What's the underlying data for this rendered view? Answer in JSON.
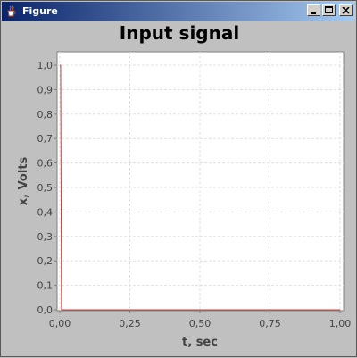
{
  "window": {
    "title": "Figure",
    "icon": "java-cup-icon"
  },
  "controls": {
    "minimize_icon": "minimize-icon",
    "maximize_icon": "maximize-icon",
    "close_icon": "close-icon"
  },
  "chart_data": {
    "type": "line",
    "title": "Input signal",
    "xlabel": "t, sec",
    "ylabel": "x, Volts",
    "xlim": [
      0,
      1
    ],
    "ylim": [
      0,
      1.05
    ],
    "x_ticks": [
      "0,00",
      "0,25",
      "0,50",
      "0,75",
      "1,00"
    ],
    "y_ticks": [
      "0,0",
      "0,1",
      "0,2",
      "0,3",
      "0,4",
      "0,5",
      "0,6",
      "0,7",
      "0,8",
      "0,9",
      "1,0"
    ],
    "grid": true,
    "series": [
      {
        "color": "#c04040",
        "x": [
          0,
          0.003,
          0.006,
          1
        ],
        "y": [
          1,
          1,
          0,
          0
        ]
      }
    ]
  }
}
